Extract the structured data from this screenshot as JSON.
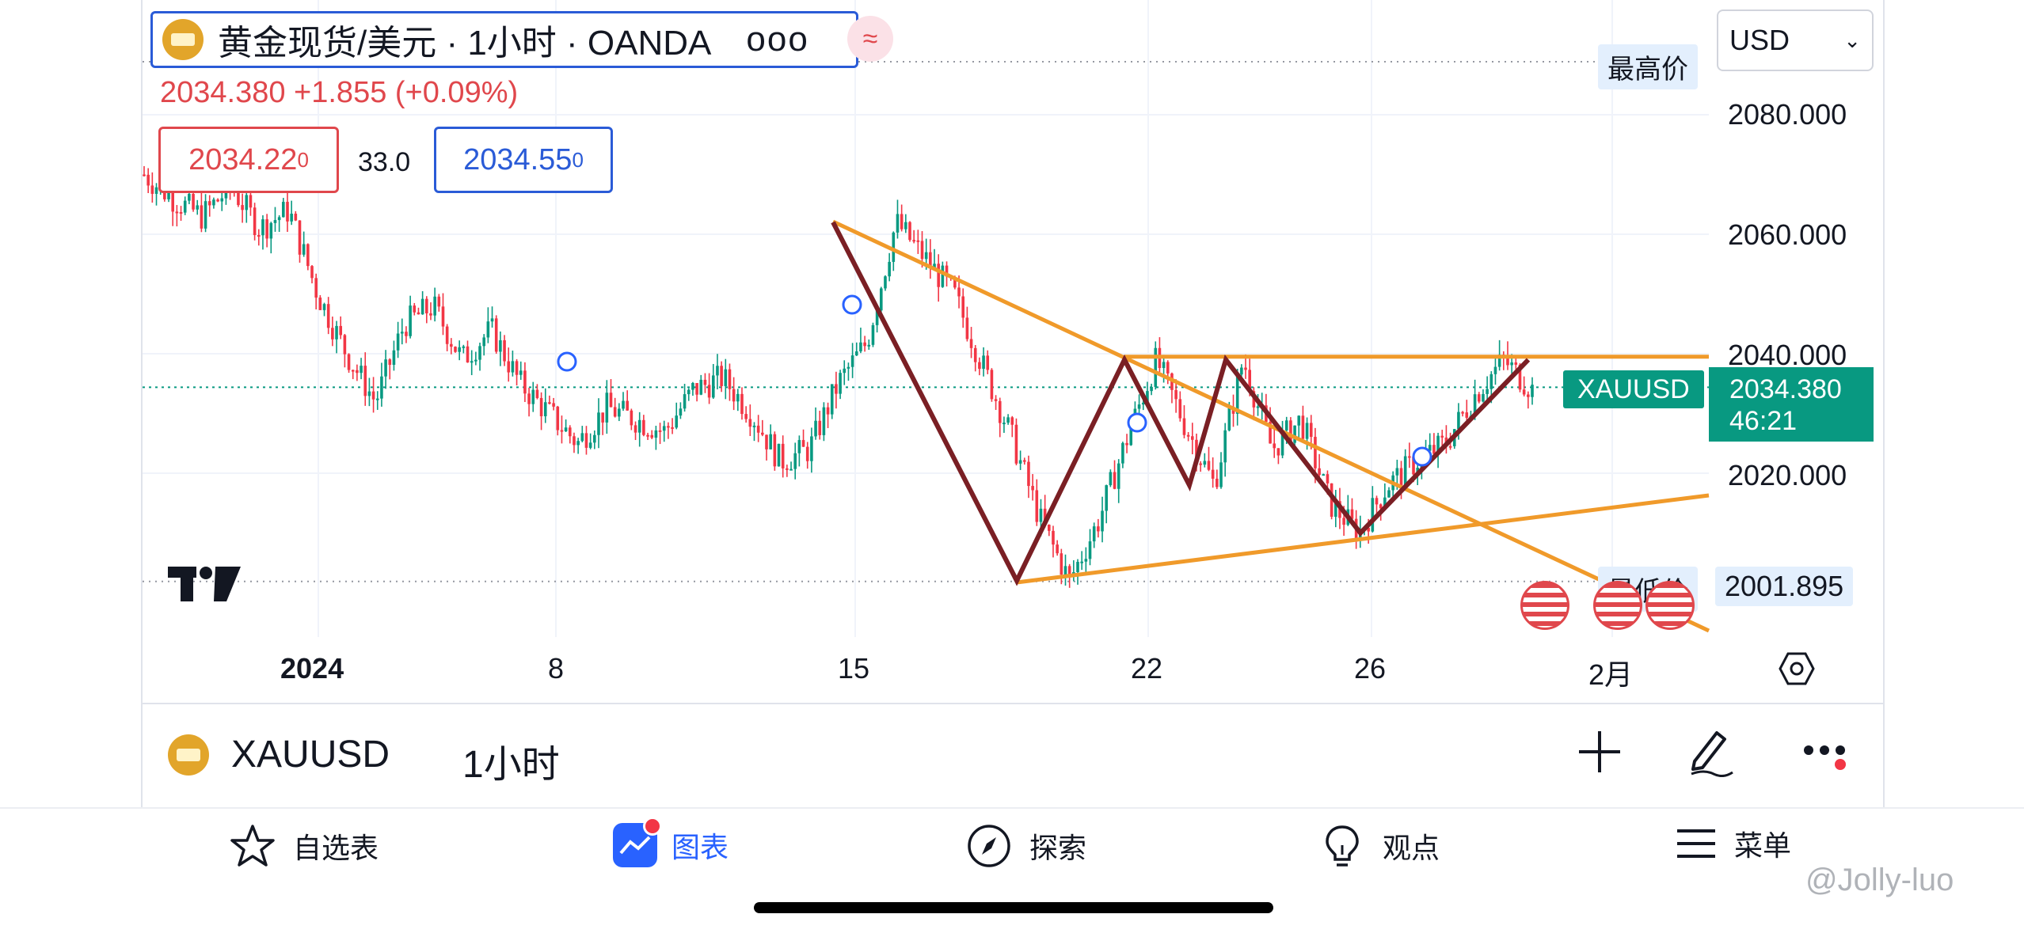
{
  "symbol_header": {
    "title": "黄金现货/美元 · 1小时 · OANDA",
    "more": "ooo",
    "price_line": "2034.380  +1.855 (+0.09%)",
    "sell_price": "2034.22",
    "sell_sup": "0",
    "spread": "33.0",
    "buy_price": "2034.55",
    "buy_sup": "0"
  },
  "currency_select": {
    "value": "USD"
  },
  "price_axis": {
    "labels": [
      "2080.000",
      "2060.000",
      "2040.000",
      "2020.000"
    ],
    "high_tag": "最高价",
    "low_tag": "最低价",
    "low_value": "2001.895",
    "last_symbol": "XAUUSD",
    "last_price": "2034.380",
    "countdown": "46:21"
  },
  "time_axis": {
    "labels": [
      "2024",
      "8",
      "15",
      "22",
      "26",
      "2月"
    ]
  },
  "bottom_toolbar": {
    "symbol": "XAUUSD",
    "interval": "1小时"
  },
  "tab_bar": {
    "items": [
      {
        "label": "自选表",
        "icon": "star-icon"
      },
      {
        "label": "图表",
        "icon": "chart-icon",
        "active": true
      },
      {
        "label": "探索",
        "icon": "compass-icon"
      },
      {
        "label": "观点",
        "icon": "lightbulb-icon"
      },
      {
        "label": "菜单",
        "icon": "menu-icon"
      }
    ]
  },
  "watermark": "@Jolly-luo",
  "colors": {
    "up": "#089981",
    "down": "#f23645",
    "trendline": "#f09a2a",
    "pattern": "#7a1f24",
    "accent": "#2962ff"
  },
  "chart_data": {
    "type": "candlestick",
    "instrument": "XAUUSD",
    "interval": "1小时",
    "ylim": [
      2000,
      2095
    ],
    "x": [
      "2024",
      "8",
      "15",
      "22",
      "26",
      "2月"
    ],
    "last": 2034.38,
    "high_marker": "最高价",
    "low_marker": 2001.895,
    "price_path": [
      2070,
      2066,
      2063,
      2068,
      2061,
      2064,
      2050,
      2040,
      2032,
      2045,
      2048,
      2039,
      2044,
      2035,
      2030,
      2025,
      2031,
      2029,
      2027,
      2034,
      2036,
      2030,
      2022,
      2024,
      2035,
      2042,
      2062,
      2056,
      2050,
      2038,
      2026,
      2012,
      2002,
      2012,
      2026,
      2039,
      2028,
      2018,
      2039,
      2024,
      2029,
      2015,
      2010,
      2018,
      2022,
      2025,
      2033,
      2039,
      2034
    ],
    "pattern_points": [
      2062,
      2002,
      2039,
      2018,
      2039,
      2010,
      2039
    ],
    "resistance": 2039.5
  }
}
